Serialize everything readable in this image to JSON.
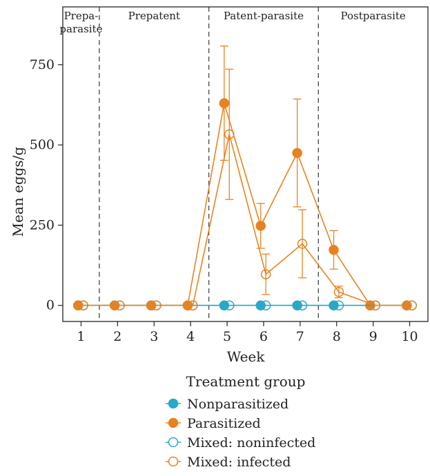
{
  "chart_data": {
    "type": "line",
    "xlabel": "Week",
    "ylabel": "Mean eggs/g",
    "xlim": [
      0.5,
      10.5
    ],
    "ylim": [
      -50,
      930
    ],
    "x_ticks": [
      1,
      2,
      3,
      4,
      5,
      6,
      7,
      8,
      9,
      10
    ],
    "y_ticks": [
      0,
      250,
      500,
      750
    ],
    "periods": [
      {
        "label_lines": [
          "Prepa-",
          "parasite"
        ],
        "start": 0.5,
        "end": 1.5
      },
      {
        "label_lines": [
          "Prepatent"
        ],
        "start": 1.5,
        "end": 4.5
      },
      {
        "label_lines": [
          "Patent-parasite"
        ],
        "start": 4.5,
        "end": 7.5
      },
      {
        "label_lines": [
          "Postparasite"
        ],
        "start": 7.5,
        "end": 10.5
      }
    ],
    "legend": {
      "title": "Treatment group",
      "placement": "bottom"
    },
    "series": [
      {
        "name": "Nonparasitized",
        "color": "#2aa8c8",
        "marker": "filled",
        "x": [
          1,
          2,
          3,
          4,
          5,
          6,
          7,
          8,
          9,
          10
        ],
        "values": [
          0,
          0,
          0,
          0,
          0,
          0,
          0,
          0,
          0,
          0
        ],
        "err": [
          0,
          0,
          0,
          0,
          0,
          0,
          0,
          0,
          0,
          0
        ]
      },
      {
        "name": "Parasitized",
        "color": "#e8821e",
        "marker": "filled",
        "x": [
          1,
          2,
          3,
          4,
          5,
          6,
          7,
          8,
          9,
          10
        ],
        "values": [
          0,
          0,
          0,
          0,
          630,
          248,
          475,
          173,
          0,
          0
        ],
        "err": [
          0,
          0,
          0,
          0,
          178,
          70,
          168,
          60,
          0,
          0
        ]
      },
      {
        "name": "Mixed: noninfected",
        "color": "#2aa8c8",
        "marker": "open",
        "x": [
          1,
          2,
          3,
          4,
          5,
          6,
          7,
          8,
          9,
          10
        ],
        "values": [
          0,
          0,
          0,
          0,
          0,
          0,
          0,
          0,
          0,
          0
        ],
        "err": [
          0,
          0,
          0,
          0,
          0,
          0,
          0,
          0,
          0,
          0
        ]
      },
      {
        "name": "Mixed: infected",
        "color": "#e8821e",
        "marker": "open",
        "x": [
          1,
          2,
          3,
          4,
          5,
          6,
          7,
          8,
          9,
          10
        ],
        "values": [
          0,
          0,
          0,
          0,
          533,
          97,
          192,
          42,
          0,
          0
        ],
        "err": [
          0,
          0,
          0,
          0,
          203,
          63,
          106,
          18,
          0,
          0
        ]
      }
    ]
  }
}
